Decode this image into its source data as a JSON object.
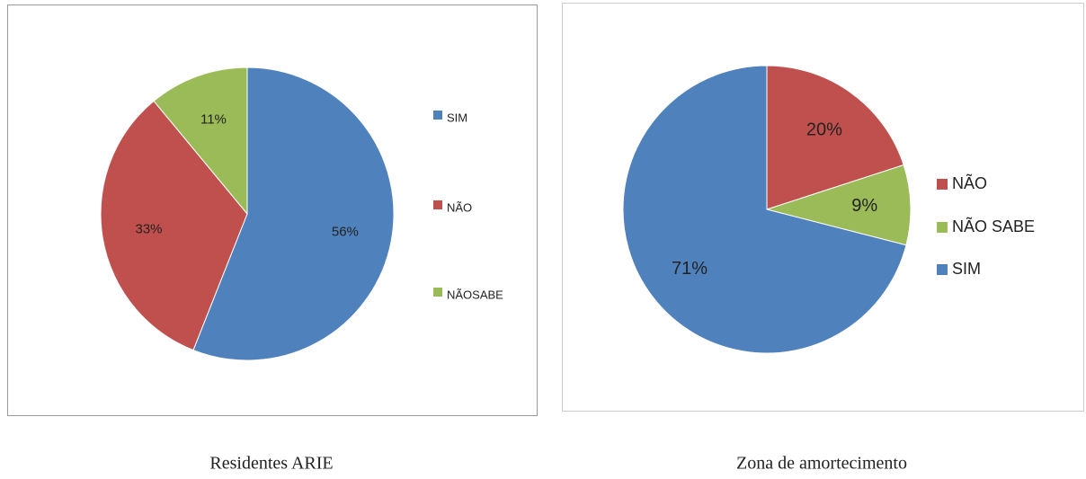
{
  "chart_data": [
    {
      "type": "pie",
      "title": "Residentes ARIE",
      "categories": [
        "SIM",
        "NÃO",
        "NÃOSABE"
      ],
      "values": [
        56,
        33,
        11
      ],
      "value_labels": [
        "56%",
        "33%",
        "11%"
      ],
      "colors": [
        "#4f81bd",
        "#c0504d",
        "#9bbb59"
      ]
    },
    {
      "type": "pie",
      "title": "Zona de amortecimento",
      "categories": [
        "NÃO",
        "NÃO SABE",
        "SIM"
      ],
      "values": [
        20,
        9,
        71
      ],
      "value_labels": [
        "20%",
        "9%",
        "71%"
      ],
      "colors": [
        "#c0504d",
        "#9bbb59",
        "#4f81bd"
      ]
    }
  ]
}
